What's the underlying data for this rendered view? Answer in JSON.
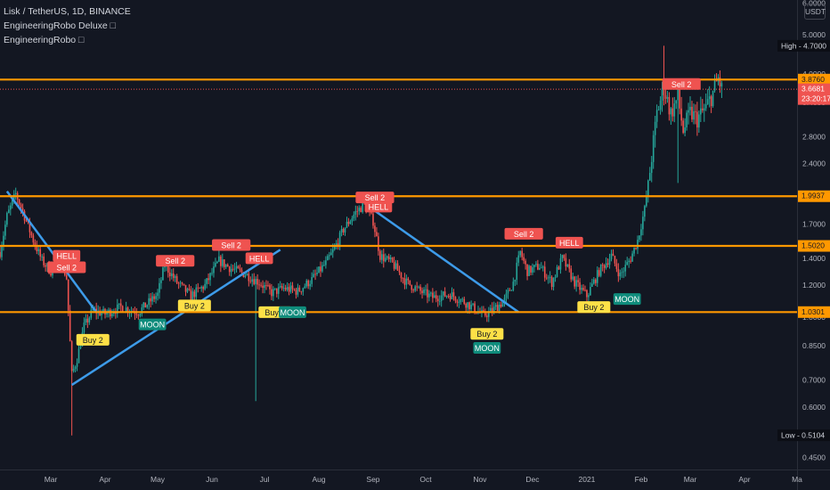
{
  "header": {
    "title": "Lisk / TetherUS, 1D, BINANCE",
    "indicators": [
      {
        "label": "EngineeringRobo Deluxe",
        "lock_icon": "lock-icon"
      },
      {
        "label": "EngineeringRobo",
        "lock_icon": "lock-icon"
      }
    ]
  },
  "currency_badge": "USDT",
  "colors": {
    "background": "#131722",
    "up": "#26a69a",
    "down": "#ef5350",
    "level_line": "#ff9800",
    "trend_line": "#3d9be9",
    "sell_label": "#ef5350",
    "buy_label": "#fde047",
    "moon_label": "#0f8c7c",
    "axis_text": "#b2b5be"
  },
  "chart_data": {
    "type": "candlestick",
    "symbol": "Lisk / TetherUS",
    "interval": "1D",
    "exchange": "BINANCE",
    "price_scale": "log",
    "y_range": [
      0.42,
      6.1
    ],
    "x_range": [
      "2020-02-01",
      "2021-05-01"
    ],
    "x_ticks": [
      {
        "label": "Mar",
        "date": "2020-03-01"
      },
      {
        "label": "Apr",
        "date": "2020-04-01"
      },
      {
        "label": "May",
        "date": "2020-05-01"
      },
      {
        "label": "Jun",
        "date": "2020-06-01"
      },
      {
        "label": "Jul",
        "date": "2020-07-01"
      },
      {
        "label": "Aug",
        "date": "2020-08-01"
      },
      {
        "label": "Sep",
        "date": "2020-09-01"
      },
      {
        "label": "Oct",
        "date": "2020-10-01"
      },
      {
        "label": "Nov",
        "date": "2020-11-01"
      },
      {
        "label": "Dec",
        "date": "2020-12-01"
      },
      {
        "label": "2021",
        "date": "2021-01-01"
      },
      {
        "label": "Feb",
        "date": "2021-02-01"
      },
      {
        "label": "Mar",
        "date": "2021-03-01"
      },
      {
        "label": "Apr",
        "date": "2021-04-01"
      },
      {
        "label": "Ma",
        "date": "2021-05-01"
      }
    ],
    "y_ticks": [
      "6.0000",
      "5.0000",
      "4.0000",
      "3.4000",
      "2.8000",
      "2.4000",
      "2.0000",
      "1.7000",
      "1.4000",
      "1.2000",
      "1.0000",
      "0.8500",
      "0.7000",
      "0.6000",
      "0.4500"
    ],
    "price_path": [
      [
        "2020-02-01",
        1.45
      ],
      [
        "2020-02-05",
        1.78
      ],
      [
        "2020-02-10",
        2.02
      ],
      [
        "2020-02-15",
        1.78
      ],
      [
        "2020-02-20",
        1.55
      ],
      [
        "2020-02-25",
        1.38
      ],
      [
        "2020-03-01",
        1.3
      ],
      [
        "2020-03-06",
        1.42
      ],
      [
        "2020-03-10",
        1.25
      ],
      [
        "2020-03-13",
        0.72
      ],
      [
        "2020-03-16",
        0.79
      ],
      [
        "2020-03-20",
        0.95
      ],
      [
        "2020-03-25",
        1.04
      ],
      [
        "2020-04-01",
        1.02
      ],
      [
        "2020-04-10",
        1.06
      ],
      [
        "2020-04-20",
        1.03
      ],
      [
        "2020-05-01",
        1.14
      ],
      [
        "2020-05-05",
        1.35
      ],
      [
        "2020-05-12",
        1.22
      ],
      [
        "2020-05-20",
        1.13
      ],
      [
        "2020-05-28",
        1.2
      ],
      [
        "2020-06-05",
        1.38
      ],
      [
        "2020-06-12",
        1.32
      ],
      [
        "2020-06-20",
        1.28
      ],
      [
        "2020-06-28",
        1.22
      ],
      [
        "2020-07-05",
        1.15
      ],
      [
        "2020-07-12",
        1.18
      ],
      [
        "2020-07-20",
        1.16
      ],
      [
        "2020-07-28",
        1.24
      ],
      [
        "2020-08-05",
        1.36
      ],
      [
        "2020-08-10",
        1.48
      ],
      [
        "2020-08-15",
        1.65
      ],
      [
        "2020-08-22",
        1.82
      ],
      [
        "2020-08-27",
        1.9
      ],
      [
        "2020-09-01",
        1.73
      ],
      [
        "2020-09-05",
        1.42
      ],
      [
        "2020-09-12",
        1.36
      ],
      [
        "2020-09-20",
        1.22
      ],
      [
        "2020-09-28",
        1.16
      ],
      [
        "2020-10-05",
        1.12
      ],
      [
        "2020-10-15",
        1.14
      ],
      [
        "2020-10-25",
        1.08
      ],
      [
        "2020-11-03",
        1.01
      ],
      [
        "2020-11-08",
        1.04
      ],
      [
        "2020-11-15",
        1.1
      ],
      [
        "2020-11-20",
        1.22
      ],
      [
        "2020-11-24",
        1.45
      ],
      [
        "2020-11-28",
        1.3
      ],
      [
        "2020-12-05",
        1.34
      ],
      [
        "2020-12-12",
        1.22
      ],
      [
        "2020-12-18",
        1.4
      ],
      [
        "2020-12-25",
        1.22
      ],
      [
        "2021-01-01",
        1.13
      ],
      [
        "2021-01-08",
        1.3
      ],
      [
        "2021-01-15",
        1.42
      ],
      [
        "2021-01-20",
        1.27
      ],
      [
        "2021-01-26",
        1.4
      ],
      [
        "2021-01-30",
        1.55
      ],
      [
        "2021-02-03",
        1.85
      ],
      [
        "2021-02-06",
        2.3
      ],
      [
        "2021-02-10",
        3.2
      ],
      [
        "2021-02-14",
        3.7
      ],
      [
        "2021-02-18",
        3.2
      ],
      [
        "2021-02-22",
        3.5
      ],
      [
        "2021-02-25",
        2.9
      ],
      [
        "2021-03-01",
        3.2
      ],
      [
        "2021-03-05",
        3.1
      ],
      [
        "2021-03-10",
        3.3
      ],
      [
        "2021-03-14",
        3.6
      ],
      [
        "2021-03-17",
        3.9
      ],
      [
        "2021-03-19",
        3.67
      ]
    ],
    "extreme_wicks": [
      {
        "date": "2020-03-13",
        "low": 0.51
      },
      {
        "date": "2020-06-26",
        "low": 0.62
      },
      {
        "date": "2021-02-14",
        "high": 4.7
      },
      {
        "date": "2021-02-22",
        "low": 2.15
      }
    ],
    "levels": [
      {
        "label": "3.8760",
        "value": 3.876
      },
      {
        "label": "1.9937",
        "value": 1.9937
      },
      {
        "label": "1.5020",
        "value": 1.502
      },
      {
        "label": "1.0301",
        "value": 1.0301
      }
    ],
    "last_price": {
      "label": "3.6681",
      "value": 3.6681,
      "countdown": "23:20:17"
    },
    "high": {
      "label": "High",
      "value_text": "4.7000",
      "value": 4.7
    },
    "low": {
      "label": "Low",
      "value_text": "0.5104",
      "value": 0.5104
    },
    "trend_lines": [
      {
        "from": [
          "2020-02-05",
          2.05
        ],
        "to": [
          "2020-03-27",
          1.03
        ]
      },
      {
        "from": [
          "2020-03-13",
          0.68
        ],
        "to": [
          "2020-07-10",
          1.47
        ]
      },
      {
        "from": [
          "2020-08-28",
          1.9
        ],
        "to": [
          "2020-11-23",
          1.03
        ]
      }
    ],
    "signals": [
      {
        "text": "HELL",
        "kind": "sell",
        "date": "2020-03-10",
        "price": 1.42
      },
      {
        "text": "Sell 2",
        "kind": "sell",
        "date": "2020-03-10",
        "price": 1.33
      },
      {
        "text": "Buy 2",
        "kind": "buy",
        "date": "2020-03-25",
        "price": 0.88
      },
      {
        "text": "MOON",
        "kind": "moon",
        "date": "2020-04-28",
        "price": 0.96
      },
      {
        "text": "Sell 2",
        "kind": "sell",
        "date": "2020-05-11",
        "price": 1.38
      },
      {
        "text": "Buy 2",
        "kind": "buy",
        "date": "2020-05-22",
        "price": 1.07
      },
      {
        "text": "Sell 2",
        "kind": "sell",
        "date": "2020-06-12",
        "price": 1.51
      },
      {
        "text": "HELL",
        "kind": "sell",
        "date": "2020-06-28",
        "price": 1.4
      },
      {
        "text": "Buy 2",
        "kind": "buy",
        "date": "2020-07-07",
        "price": 1.03
      },
      {
        "text": "MOON",
        "kind": "moon",
        "date": "2020-07-17",
        "price": 1.03
      },
      {
        "text": "Sell 2",
        "kind": "sell",
        "date": "2020-09-02",
        "price": 1.98
      },
      {
        "text": "HELL",
        "kind": "sell",
        "date": "2020-09-04",
        "price": 1.88
      },
      {
        "text": "Buy 2",
        "kind": "buy",
        "date": "2020-11-05",
        "price": 0.91
      },
      {
        "text": "MOON",
        "kind": "moon",
        "date": "2020-11-05",
        "price": 0.84
      },
      {
        "text": "Sell 2",
        "kind": "sell",
        "date": "2020-11-26",
        "price": 1.61
      },
      {
        "text": "HELL",
        "kind": "sell",
        "date": "2020-12-22",
        "price": 1.53
      },
      {
        "text": "Buy 2",
        "kind": "buy",
        "date": "2021-01-05",
        "price": 1.06
      },
      {
        "text": "MOON",
        "kind": "moon",
        "date": "2021-01-24",
        "price": 1.11
      },
      {
        "text": "Sell 2",
        "kind": "sell",
        "date": "2021-02-24",
        "price": 3.78
      }
    ]
  }
}
